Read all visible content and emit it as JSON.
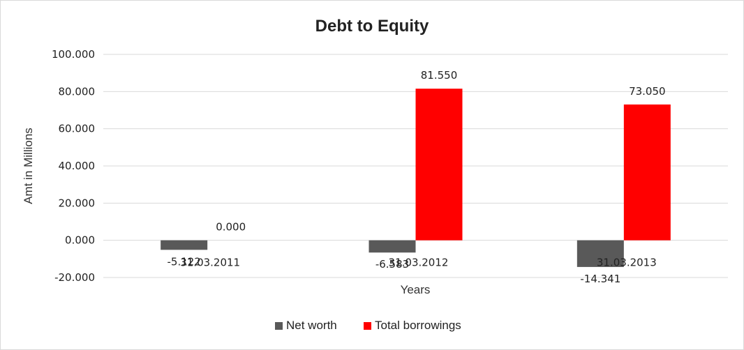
{
  "chart_data": {
    "type": "bar",
    "title": "Debt to Equity",
    "xlabel": "Years",
    "ylabel": "Amt in Millions",
    "categories": [
      "31.03.2011",
      "31.03.2012",
      "31.03.2013"
    ],
    "series": [
      {
        "name": "Net worth",
        "values": [
          -5.122,
          -6.583,
          -14.341
        ],
        "color": "#595959"
      },
      {
        "name": "Total borrowings",
        "values": [
          0.0,
          81.55,
          73.05
        ],
        "color": "#ff0000"
      }
    ],
    "ylim": [
      -20,
      100
    ],
    "yticks": [
      -20,
      0,
      20,
      40,
      60,
      80,
      100
    ],
    "tick_labels": [
      "-20.000",
      "0.000",
      "20.000",
      "40.000",
      "60.000",
      "80.000",
      "100.000"
    ],
    "data_labels": [
      [
        "-5.122",
        "-6.583",
        "-14.341"
      ],
      [
        "0.000",
        "81.550",
        "73.050"
      ]
    ],
    "grid": true,
    "legend": "bottom"
  }
}
